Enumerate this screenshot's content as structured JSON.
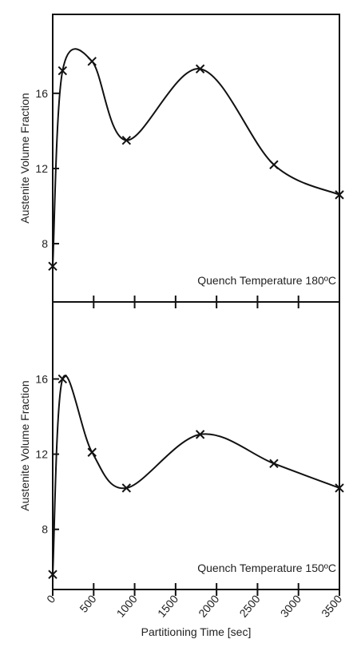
{
  "chart_data": [
    {
      "type": "line",
      "ylabel": "Austenite Volume Fraction",
      "annotation": "Quench Temperature 180ºC",
      "x": [
        0,
        120,
        480,
        900,
        1800,
        2700,
        3500
      ],
      "series": [
        {
          "name": "180ºC",
          "color": "#111111",
          "values": [
            6.8,
            17.2,
            17.7,
            13.5,
            17.3,
            12.2,
            10.6
          ]
        }
      ],
      "xlim": [
        0,
        3500
      ],
      "xticks": [
        0,
        500,
        1000,
        1500,
        2000,
        2500,
        3000,
        3500
      ],
      "ylim": [
        4.9,
        20.2
      ],
      "yticks": [
        8,
        12,
        16
      ]
    },
    {
      "type": "line",
      "ylabel": "Austenite Volume Fraction",
      "annotation": "Quench Temperature 150ºC",
      "xlabel": "Partitioning Time [sec]",
      "x": [
        0,
        120,
        480,
        900,
        1800,
        2700,
        3500
      ],
      "series": [
        {
          "name": "150ºC",
          "color": "#111111",
          "values": [
            5.6,
            16,
            12.1,
            10.2,
            13.05,
            11.5,
            10.2
          ]
        }
      ],
      "xlim": [
        0,
        3500
      ],
      "xticks": [
        0,
        500,
        1000,
        1500,
        2000,
        2500,
        3000,
        3500
      ],
      "ylim": [
        4.8,
        20.1
      ],
      "yticks": [
        8,
        12,
        16
      ]
    }
  ]
}
